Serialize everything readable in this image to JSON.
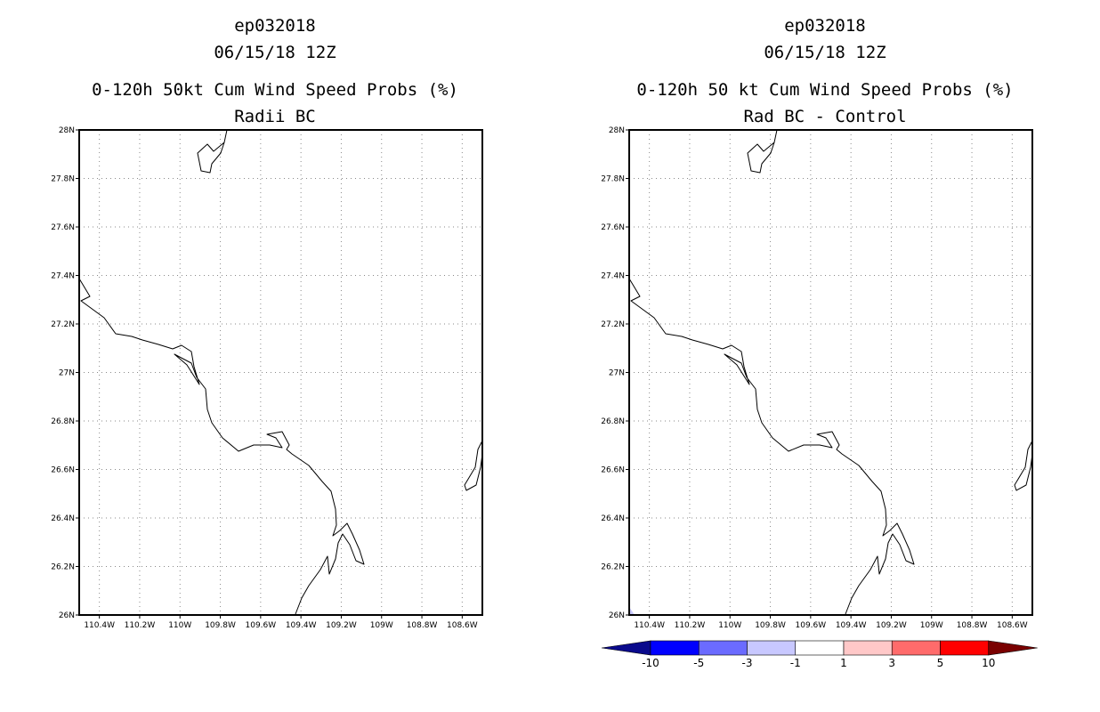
{
  "panels": [
    {
      "case_id": "ep032018",
      "datetime": "06/15/18 12Z",
      "title": "0-120h 50kt Cum Wind Speed Probs (%)",
      "subtitle": "Radii BC"
    },
    {
      "case_id": "ep032018",
      "datetime": "06/15/18 12Z",
      "title": "0-120h 50 kt Cum Wind Speed Probs (%)",
      "subtitle": "Rad BC - Control"
    }
  ],
  "map": {
    "lat_labels": [
      "28N",
      "27.8N",
      "27.6N",
      "27.4N",
      "27.2N",
      "27N",
      "26.8N",
      "26.6N",
      "26.4N",
      "26.2N",
      "26N"
    ],
    "lon_labels": [
      "110.4W",
      "110.2W",
      "110W",
      "109.8W",
      "109.6W",
      "109.4W",
      "109.2W",
      "109W",
      "108.8W",
      "108.6W"
    ],
    "lat_range": [
      26.0,
      28.0
    ],
    "lon_range": [
      -110.5,
      -108.5
    ]
  },
  "colorbar": {
    "labels": [
      "-10",
      "-5",
      "-3",
      "-1",
      "1",
      "3",
      "5",
      "10"
    ],
    "colors": [
      "#0a0a8c",
      "#0000ff",
      "#6b6bff",
      "#c8c8ff",
      "#ffffff",
      "#ffc8c8",
      "#ff6b6b",
      "#ff0000",
      "#7a0000"
    ]
  }
}
